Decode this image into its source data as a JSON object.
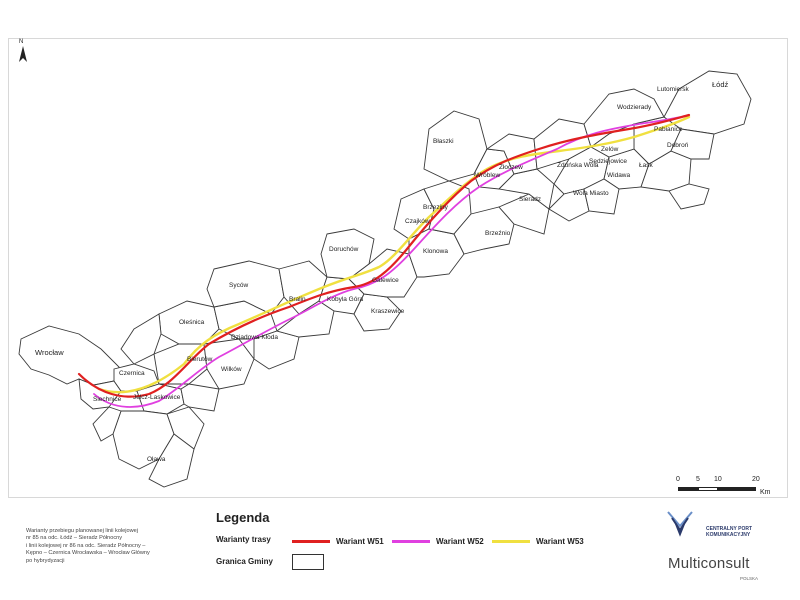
{
  "map": {
    "north_label": "N",
    "places": [
      {
        "name": "Łódź",
        "size": "big"
      },
      {
        "name": "Lutomiersk"
      },
      {
        "name": "Wodzierady"
      },
      {
        "name": "Pabianice"
      },
      {
        "name": "Dobroń"
      },
      {
        "name": "Łask"
      },
      {
        "name": "Widawa"
      },
      {
        "name": "Sędziejowice"
      },
      {
        "name": "Zelów"
      },
      {
        "name": "Wola Miasto"
      },
      {
        "name": "Zduńska Wola"
      },
      {
        "name": "Sieradz"
      },
      {
        "name": "Wróblew"
      },
      {
        "name": "Błaszki"
      },
      {
        "name": "Złoczew"
      },
      {
        "name": "Brzeźnio"
      },
      {
        "name": "Brzeziny"
      },
      {
        "name": "Czajków"
      },
      {
        "name": "Klonowa"
      },
      {
        "name": "Doruchów"
      },
      {
        "name": "Galewice"
      },
      {
        "name": "Kraszewice"
      },
      {
        "name": "Kobyla Góra"
      },
      {
        "name": "Bralin"
      },
      {
        "name": "Syców"
      },
      {
        "name": "Oleśnica"
      },
      {
        "name": "Dziadowa Kłoda"
      },
      {
        "name": "Bierutów"
      },
      {
        "name": "Wilków"
      },
      {
        "name": "Wrocław",
        "size": "big"
      },
      {
        "name": "Czernica"
      },
      {
        "name": "Jelcz-Laskowice"
      },
      {
        "name": "Siechnice"
      },
      {
        "name": "Oława"
      }
    ]
  },
  "scale": {
    "ticks": [
      "0",
      "5",
      "10",
      "20"
    ],
    "unit": "Km"
  },
  "legend": {
    "title": "Legenda",
    "routes_label": "Warianty trasy",
    "routes": [
      {
        "name": "Wariant W51",
        "color": "#e02020"
      },
      {
        "name": "Wariant W52",
        "color": "#e040e0"
      },
      {
        "name": "Wariant W53",
        "color": "#f0e040"
      }
    ],
    "boundary_label": "Granica Gminy"
  },
  "caption": [
    "Warianty przebiegu planowanej linii kolejowej",
    "nr 85 na odc. Łódź – Sieradz Północny",
    "i linii kolejowej nr 86 na odc. Sieradz Północny –",
    "Kępno – Czernica Wrocławska – Wrocław Główny",
    "po hybrydyzacji"
  ],
  "logos": {
    "cpk_line1": "CENTRALNY PORT",
    "cpk_line2": "KOMUNIKACYJNY",
    "consultant": "Multiconsult",
    "consultant_sub": "POLSKA"
  }
}
